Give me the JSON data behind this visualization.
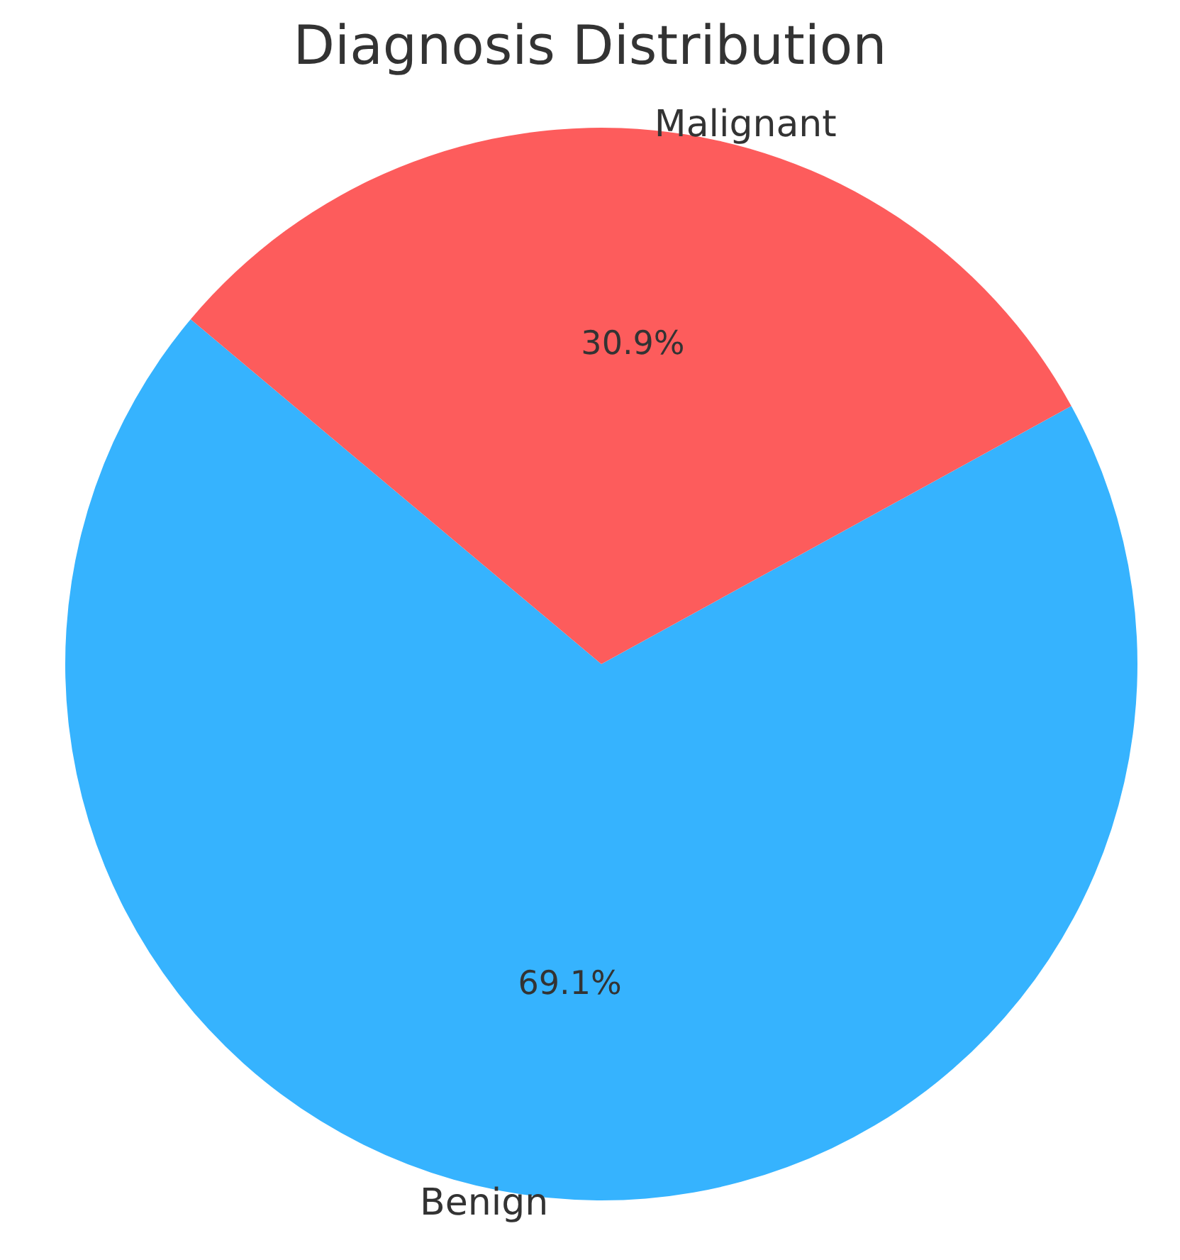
{
  "chart_data": {
    "type": "pie",
    "title": "Diagnosis Distribution",
    "categories": [
      "Benign",
      "Malignant"
    ],
    "values": [
      69.1,
      30.9
    ],
    "colors": [
      "#36b3fe",
      "#fd5c5c"
    ],
    "value_labels": [
      "69.1%",
      "30.9%"
    ],
    "legend": false
  }
}
